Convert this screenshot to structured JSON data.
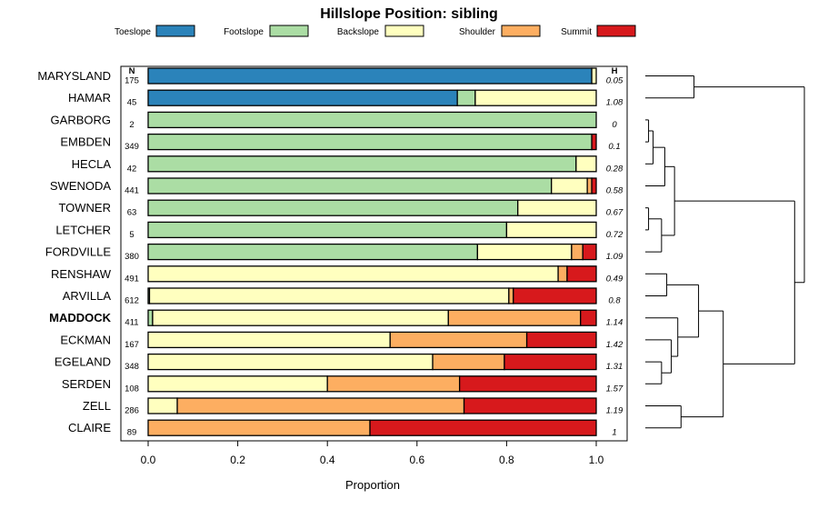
{
  "chart_data": {
    "type": "bar",
    "orientation": "horizontal",
    "stacked": true,
    "title": "Hillslope Position: sibling",
    "xlabel": "Proportion",
    "ylabel": "",
    "xlim": [
      0,
      1
    ],
    "x_ticks": [
      "0.0",
      "0.2",
      "0.4",
      "0.6",
      "0.8",
      "1.0"
    ],
    "n_header": "N",
    "h_header": "H",
    "highlight_category": "MADDOCK",
    "series_names": [
      "Toeslope",
      "Footslope",
      "Backslope",
      "Shoulder",
      "Summit"
    ],
    "colors": [
      "#2b83ba",
      "#abdda4",
      "#ffffbf",
      "#fdae61",
      "#d7191c"
    ],
    "categories": [
      "MARYSLAND",
      "HAMAR",
      "GARBORG",
      "EMBDEN",
      "HECLA",
      "SWENODA",
      "TOWNER",
      "LETCHER",
      "FORDVILLE",
      "RENSHAW",
      "ARVILLA",
      "MADDOCK",
      "ECKMAN",
      "EGELAND",
      "SERDEN",
      "ZELL",
      "CLAIRE"
    ],
    "n": [
      "175",
      "45",
      "2",
      "349",
      "42",
      "441",
      "63",
      "5",
      "380",
      "491",
      "612",
      "411",
      "167",
      "348",
      "108",
      "286",
      "89"
    ],
    "h": [
      "0.05",
      "1.08",
      "0",
      "0.1",
      "0.28",
      "0.58",
      "0.67",
      "0.72",
      "1.09",
      "0.49",
      "0.8",
      "1.14",
      "1.42",
      "1.31",
      "1.57",
      "1.19",
      "1"
    ],
    "series": [
      {
        "name": "Toeslope",
        "values": [
          0.99,
          0.69,
          0,
          0,
          0,
          0,
          0,
          0,
          0,
          0,
          0,
          0,
          0,
          0,
          0,
          0,
          0
        ]
      },
      {
        "name": "Footslope",
        "values": [
          0,
          0.04,
          1.0,
          0.99,
          0.955,
          0.9,
          0.825,
          0.8,
          0.735,
          0,
          0.003,
          0.01,
          0,
          0,
          0,
          0,
          0
        ]
      },
      {
        "name": "Backslope",
        "values": [
          0.01,
          0.27,
          0,
          0,
          0.045,
          0.08,
          0.175,
          0.2,
          0.21,
          0.915,
          0.802,
          0.66,
          0.54,
          0.635,
          0.4,
          0.065,
          0
        ]
      },
      {
        "name": "Shoulder",
        "values": [
          0,
          0,
          0,
          0,
          0,
          0.01,
          0,
          0,
          0.025,
          0.02,
          0.01,
          0.295,
          0.305,
          0.16,
          0.295,
          0.64,
          0.495
        ]
      },
      {
        "name": "Summit",
        "values": [
          0,
          0,
          0,
          0.01,
          0,
          0.01,
          0,
          0,
          0.03,
          0.065,
          0.185,
          0.035,
          0.155,
          0.205,
          0.305,
          0.295,
          0.505
        ]
      }
    ],
    "dendrogram": {
      "leaf_order": [
        "MARYSLAND",
        "HAMAR",
        "GARBORG",
        "EMBDEN",
        "HECLA",
        "SWENODA",
        "TOWNER",
        "LETCHER",
        "FORDVILLE",
        "RENSHAW",
        "ARVILLA",
        "MADDOCK",
        "ECKMAN",
        "EGELAND",
        "SERDEN",
        "ZELL",
        "CLAIRE"
      ],
      "merges": [
        {
          "a": "GARBORG",
          "b": "EMBDEN",
          "height": 0.05
        },
        {
          "a": "m1",
          "b": "HECLA",
          "height": 0.12
        },
        {
          "a": "m2",
          "b": "SWENODA",
          "height": 0.3
        },
        {
          "a": "TOWNER",
          "b": "LETCHER",
          "height": 0.05
        },
        {
          "a": "m4",
          "b": "FORDVILLE",
          "height": 0.25
        },
        {
          "a": "m3",
          "b": "m5",
          "height": 0.45
        },
        {
          "a": "MARYSLAND",
          "b": "HAMAR",
          "height": 0.75
        },
        {
          "a": "RENSHAW",
          "b": "ARVILLA",
          "height": 0.33
        },
        {
          "a": "EGELAND",
          "b": "SERDEN",
          "height": 0.25
        },
        {
          "a": "ECKMAN",
          "b": "m9",
          "height": 0.4
        },
        {
          "a": "MADDOCK",
          "b": "m10",
          "height": 0.5
        },
        {
          "a": "m8",
          "b": "m11",
          "height": 0.82
        },
        {
          "a": "ZELL",
          "b": "CLAIRE",
          "height": 0.55
        },
        {
          "a": "m12",
          "b": "m13",
          "height": 1.2
        },
        {
          "a": "m6",
          "b": "m14",
          "height": 2.3
        },
        {
          "a": "m7",
          "b": "m15",
          "height": 2.45
        }
      ]
    }
  }
}
